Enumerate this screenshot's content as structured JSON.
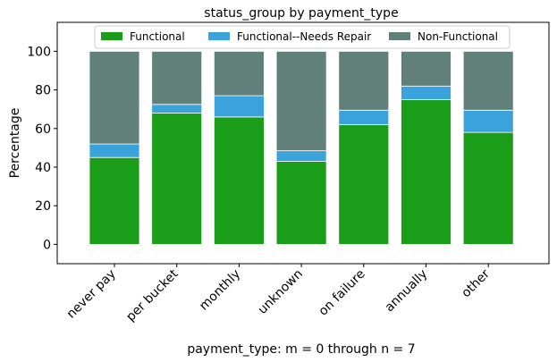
{
  "chart_data": {
    "type": "bar",
    "stacked": true,
    "title": "status_group by payment_type",
    "xlabel": "payment_type: m = 0 through n = 7",
    "ylabel": "Percentage",
    "ylim": [
      -10,
      115
    ],
    "yticks": [
      0,
      20,
      40,
      60,
      80,
      100
    ],
    "categories": [
      "never pay",
      "per bucket",
      "monthly",
      "unknown",
      "on failure",
      "annually",
      "other"
    ],
    "series": [
      {
        "name": "Functional",
        "color": "#1a9e1a",
        "values": [
          45,
          68,
          66,
          43,
          62,
          75,
          58
        ]
      },
      {
        "name": "Functional--Needs Repair",
        "color": "#3ba3db",
        "values": [
          7,
          4.5,
          11,
          5.5,
          7.5,
          7,
          11.5
        ]
      },
      {
        "name": "Non-Functional",
        "color": "#62807a",
        "values": [
          48,
          27.5,
          23,
          51.5,
          30.5,
          18,
          30.5
        ]
      }
    ],
    "legend_position": "top-center",
    "grid": false
  }
}
